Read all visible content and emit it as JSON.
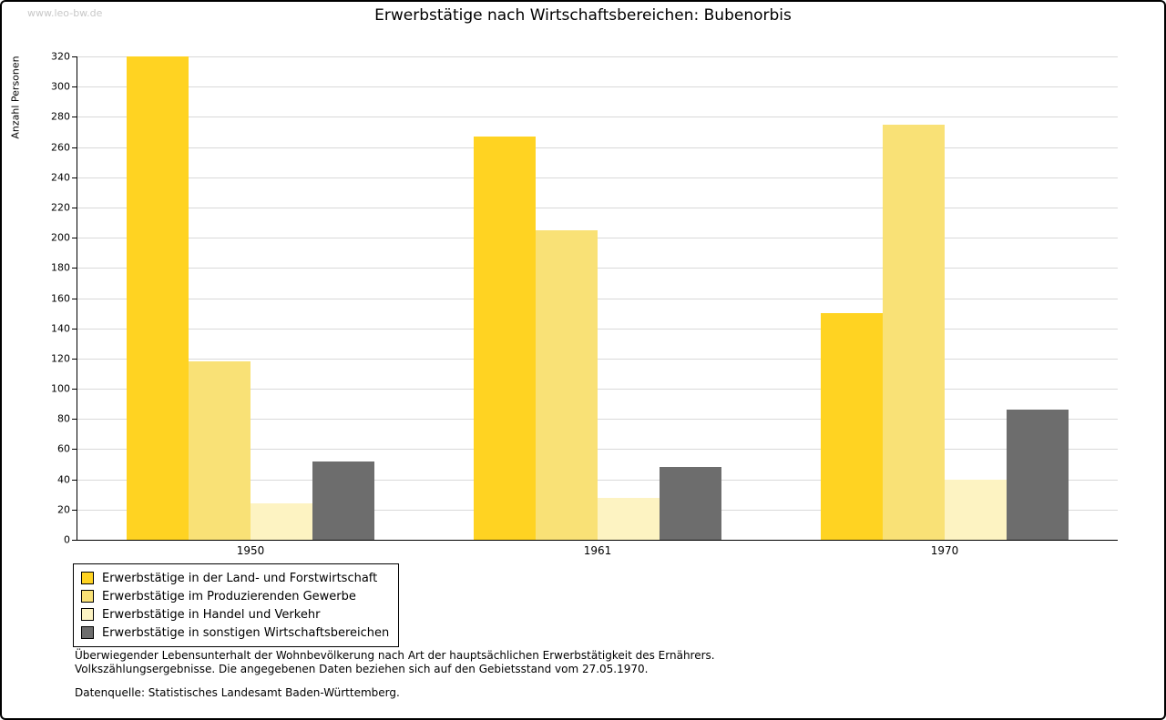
{
  "watermark": "www.leo-bw.de",
  "chart_data": {
    "type": "bar",
    "title": "Erwerbstätige nach Wirtschaftsbereichen: Bubenorbis",
    "ylabel": "Anzahl Personen",
    "xlabel": "",
    "ylim": [
      0,
      320
    ],
    "ytick_step": 20,
    "grid": true,
    "legend_position": "bottom-left",
    "categories": [
      "1950",
      "1961",
      "1970"
    ],
    "series": [
      {
        "name": "Erwerbstätige in der Land- und Forstwirtschaft",
        "color": "#ffd322",
        "values": [
          320,
          267,
          150
        ]
      },
      {
        "name": "Erwerbstätige im Produzierenden Gewerbe",
        "color": "#f9e176",
        "values": [
          118,
          205,
          275
        ]
      },
      {
        "name": "Erwerbstätige in Handel und Verkehr",
        "color": "#fdf3c2",
        "values": [
          24,
          28,
          40
        ]
      },
      {
        "name": "Erwerbstätige in sonstigen Wirtschaftsbereichen",
        "color": "#6d6d6d",
        "values": [
          52,
          48,
          86
        ]
      }
    ]
  },
  "footnotes": {
    "line1": "Überwiegender Lebensunterhalt der Wohnbevölkerung nach Art der hauptsächlichen Erwerbstätigkeit des Ernährers.",
    "line2": "Volkszählungsergebnisse. Die angegebenen Daten beziehen sich auf den Gebietsstand vom 27.05.1970.",
    "source": "Datenquelle: Statistisches Landesamt Baden-Württemberg."
  }
}
